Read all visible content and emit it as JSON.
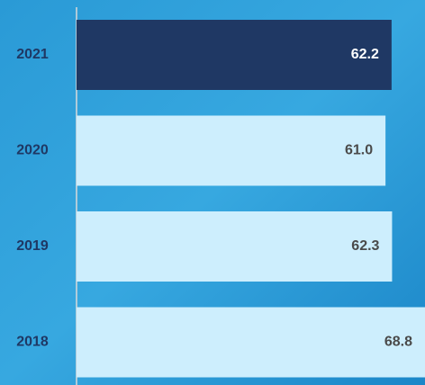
{
  "chart_data": {
    "type": "barh",
    "categories": [
      "2021",
      "2020",
      "2019",
      "2018"
    ],
    "values": [
      62.2,
      61.0,
      62.3,
      68.8
    ],
    "value_labels": [
      "62.2",
      "61.0",
      "62.3",
      "68.8"
    ],
    "colors": [
      "#1f3864",
      "#cdeefd",
      "#cdeefd",
      "#cdeefd"
    ],
    "xlim": [
      0,
      68.8
    ]
  }
}
